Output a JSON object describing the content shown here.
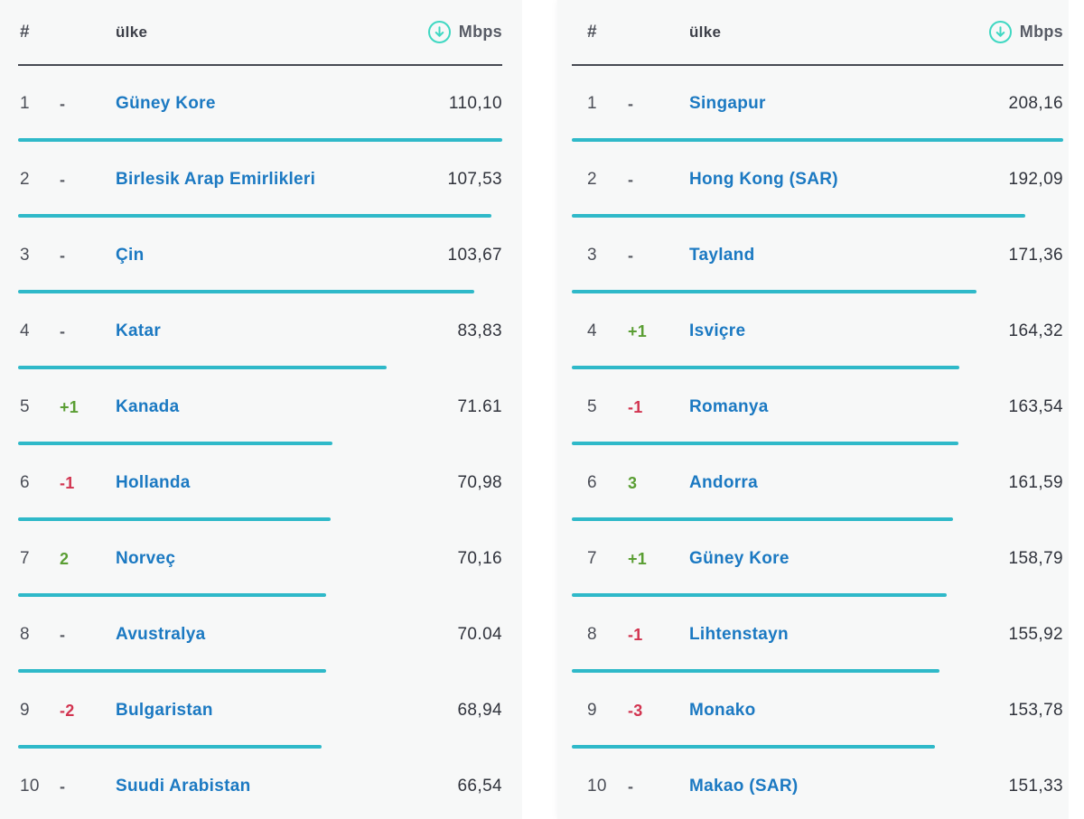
{
  "colors": {
    "panel_bg": "#f7f8f8",
    "divider": "#474a53",
    "bar_cyan": "#2fb9c9",
    "icon_teal": "#3fd8c2",
    "link_blue": "#1b79c2",
    "up_green": "#5a9e33",
    "down_red": "#d23450",
    "text_dark": "#30333c",
    "text_gray": "#4b4e57",
    "header_gray": "#3c3f48",
    "unit_gray": "#575b65"
  },
  "header": {
    "rank": "#",
    "country": "ülke",
    "unit": "Mbps",
    "unit_icon": "download-circle-icon"
  },
  "tables": [
    {
      "id": "left-ranking",
      "rows": [
        {
          "rank": "1",
          "change": "-",
          "trend": "none",
          "country": "Güney Kore",
          "value": "110,10"
        },
        {
          "rank": "2",
          "change": "-",
          "trend": "none",
          "country": "Birlesik Arap Emirlikleri",
          "value": "107,53"
        },
        {
          "rank": "3",
          "change": "-",
          "trend": "none",
          "country": "Çin",
          "value": "103,67"
        },
        {
          "rank": "4",
          "change": "-",
          "trend": "none",
          "country": "Katar",
          "value": "83,83"
        },
        {
          "rank": "5",
          "change": "+1",
          "trend": "up",
          "country": "Kanada",
          "value": "71.61"
        },
        {
          "rank": "6",
          "change": "-1",
          "trend": "down",
          "country": "Hollanda",
          "value": "70,98"
        },
        {
          "rank": "7",
          "change": "2",
          "trend": "up",
          "country": "Norveç",
          "value": "70,16"
        },
        {
          "rank": "8",
          "change": "-",
          "trend": "none",
          "country": "Avustralya",
          "value": "70.04"
        },
        {
          "rank": "9",
          "change": "-2",
          "trend": "down",
          "country": "Bulgaristan",
          "value": "68,94"
        },
        {
          "rank": "10",
          "change": "-",
          "trend": "none",
          "country": "Suudi Arabistan",
          "value": "66,54"
        }
      ]
    },
    {
      "id": "right-ranking",
      "rows": [
        {
          "rank": "1",
          "change": "-",
          "trend": "none",
          "country": "Singapur",
          "value": "208,16"
        },
        {
          "rank": "2",
          "change": "-",
          "trend": "none",
          "country": "Hong Kong (SAR)",
          "value": "192,09"
        },
        {
          "rank": "3",
          "change": "-",
          "trend": "none",
          "country": "Tayland",
          "value": "171,36"
        },
        {
          "rank": "4",
          "change": "+1",
          "trend": "up",
          "country": "Isviçre",
          "value": "164,32"
        },
        {
          "rank": "5",
          "change": "-1",
          "trend": "down",
          "country": "Romanya",
          "value": "163,54"
        },
        {
          "rank": "6",
          "change": "3",
          "trend": "up",
          "country": "Andorra",
          "value": "161,59"
        },
        {
          "rank": "7",
          "change": "+1",
          "trend": "up",
          "country": "Güney Kore",
          "value": "158,79"
        },
        {
          "rank": "8",
          "change": "-1",
          "trend": "down",
          "country": "Lihtenstayn",
          "value": "155,92"
        },
        {
          "rank": "9",
          "change": "-3",
          "trend": "down",
          "country": "Monako",
          "value": "153,78"
        },
        {
          "rank": "10",
          "change": "-",
          "trend": "none",
          "country": "Makao (SAR)",
          "value": "151,33"
        }
      ]
    }
  ],
  "chart_data": [
    {
      "type": "table",
      "title": "Download speed ranking (left table)",
      "columns": [
        "#",
        "rank_change",
        "ülke",
        "Mbps"
      ],
      "categories": [
        "Güney Kore",
        "Birlesik Arap Emirlikleri",
        "Çin",
        "Katar",
        "Kanada",
        "Hollanda",
        "Norveç",
        "Avustralya",
        "Bulgaristan",
        "Suudi Arabistan"
      ],
      "values": [
        110.1,
        107.53,
        103.67,
        83.83,
        71.61,
        70.98,
        70.16,
        70.04,
        68.94,
        66.54
      ],
      "rank_change": [
        "-",
        "-",
        "-",
        "-",
        "+1",
        "-1",
        "2",
        "-",
        "-2",
        "-"
      ],
      "unit": "Mbps",
      "bar_scale_max": 110.1
    },
    {
      "type": "table",
      "title": "Download speed ranking (right table)",
      "columns": [
        "#",
        "rank_change",
        "ülke",
        "Mbps"
      ],
      "categories": [
        "Singapur",
        "Hong Kong (SAR)",
        "Tayland",
        "Isviçre",
        "Romanya",
        "Andorra",
        "Güney Kore",
        "Lihtenstayn",
        "Monako",
        "Makao (SAR)"
      ],
      "values": [
        208.16,
        192.09,
        171.36,
        164.32,
        163.54,
        161.59,
        158.79,
        155.92,
        153.78,
        151.33
      ],
      "rank_change": [
        "-",
        "-",
        "-",
        "+1",
        "-1",
        "3",
        "+1",
        "-1",
        "-3",
        "-"
      ],
      "unit": "Mbps",
      "bar_scale_max": 208.16
    }
  ]
}
